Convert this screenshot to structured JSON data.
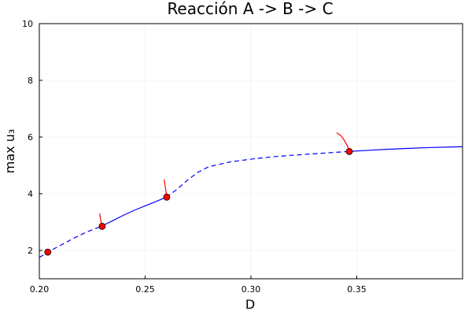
{
  "chart_data": {
    "type": "line",
    "title": "Reacción A -> B -> C",
    "xlabel": "D",
    "ylabel": "max u₃",
    "xlim": [
      0.2,
      0.4
    ],
    "ylim": [
      1,
      10
    ],
    "xticks": [
      0.2,
      0.25,
      0.3,
      0.35
    ],
    "xtick_labels": [
      "0.20",
      "0.25",
      "0.30",
      "0.35"
    ],
    "yticks": [
      2,
      4,
      6,
      8,
      10
    ],
    "ytick_labels": [
      "2",
      "4",
      "6",
      "8",
      "10"
    ],
    "grid": true,
    "legend": "none",
    "series": [
      {
        "color": "#0000ff",
        "style": "dashed",
        "x": [
          0.2,
          0.204,
          0.21,
          0.216,
          0.222,
          0.229
        ],
        "y": [
          1.75,
          1.94,
          2.18,
          2.42,
          2.64,
          2.84
        ]
      },
      {
        "color": "#0000ff",
        "style": "solid",
        "x": [
          0.229,
          0.235,
          0.24,
          0.245,
          0.25,
          0.255,
          0.26
        ],
        "y": [
          2.84,
          3.06,
          3.25,
          3.42,
          3.57,
          3.72,
          3.88
        ]
      },
      {
        "color": "#0000ff",
        "style": "dashed",
        "x": [
          0.26,
          0.265,
          0.27,
          0.275,
          0.28,
          0.29,
          0.3,
          0.31,
          0.32,
          0.33,
          0.34,
          0.346
        ],
        "y": [
          3.88,
          4.15,
          4.48,
          4.76,
          4.95,
          5.12,
          5.22,
          5.3,
          5.36,
          5.41,
          5.46,
          5.49
        ]
      },
      {
        "color": "#0000ff",
        "style": "solid",
        "x": [
          0.346,
          0.355,
          0.365,
          0.375,
          0.385,
          0.395,
          0.4
        ],
        "y": [
          5.49,
          5.53,
          5.57,
          5.6,
          5.63,
          5.65,
          5.66
        ]
      },
      {
        "color": "#ff0000",
        "style": "solid",
        "x": [
          0.2295,
          0.2292,
          0.2288,
          0.2285
        ],
        "y": [
          2.85,
          3.0,
          3.15,
          3.3
        ]
      },
      {
        "color": "#ff0000",
        "style": "solid",
        "x": [
          0.2602,
          0.2598,
          0.2594,
          0.259
        ],
        "y": [
          3.9,
          4.1,
          4.3,
          4.5
        ]
      },
      {
        "color": "#ff0000",
        "style": "solid",
        "x": [
          0.3465,
          0.3455,
          0.344,
          0.3425,
          0.3405
        ],
        "y": [
          5.5,
          5.7,
          5.9,
          6.05,
          6.15
        ]
      }
    ],
    "special_points": {
      "color": "#ff0000",
      "x": [
        0.204,
        0.2297,
        0.2602,
        0.3465
      ],
      "y": [
        1.94,
        2.85,
        3.88,
        5.49
      ]
    }
  }
}
